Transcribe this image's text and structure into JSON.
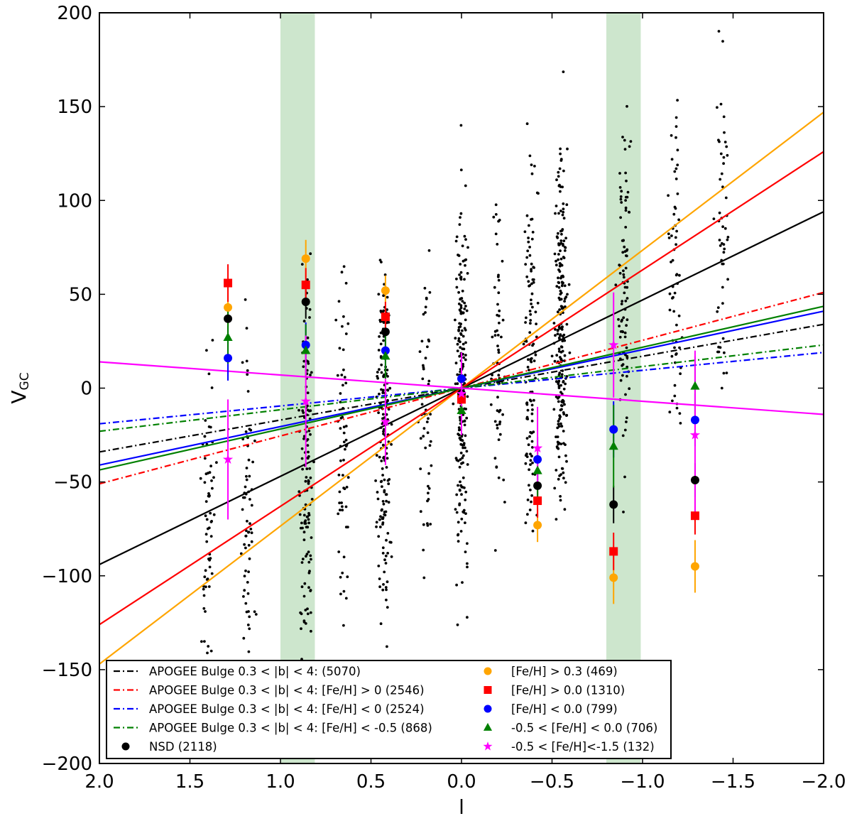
{
  "chart_data": {
    "type": "scatter",
    "title": "",
    "xlabel": "l",
    "ylabel_main": "V",
    "ylabel_sub": "GC",
    "xlim": [
      2.0,
      -2.0
    ],
    "ylim": [
      -200,
      200
    ],
    "xticks": [
      2.0,
      1.5,
      1.0,
      0.5,
      0.0,
      -0.5,
      -1.0,
      -1.5,
      -2.0
    ],
    "xtick_labels": [
      "2.0",
      "1.5",
      "1.0",
      "0.5",
      "0.0",
      "−0.5",
      "−1.0",
      "−1.5",
      "−2.0"
    ],
    "yticks": [
      200,
      150,
      100,
      50,
      0,
      -50,
      -100,
      -150,
      -200
    ],
    "ytick_labels": [
      "200",
      "150",
      "100",
      "50",
      "0",
      "−50",
      "−100",
      "−150",
      "−200"
    ],
    "shaded_bands": [
      {
        "x_range": [
          1.0,
          0.81
        ],
        "color": "#cde6cd"
      },
      {
        "x_range": [
          -0.8,
          -0.99
        ],
        "color": "#cde6cd"
      }
    ],
    "scatter_columns": [
      {
        "l": 1.4,
        "n": 70
      },
      {
        "l": 1.18,
        "n": 70
      },
      {
        "l": 0.86,
        "n": 130
      },
      {
        "l": 0.65,
        "n": 60
      },
      {
        "l": 0.43,
        "n": 170
      },
      {
        "l": 0.2,
        "n": 55
      },
      {
        "l": 0.0,
        "n": 200
      },
      {
        "l": -0.2,
        "n": 60
      },
      {
        "l": -0.38,
        "n": 120
      },
      {
        "l": -0.55,
        "n": 220
      },
      {
        "l": -0.9,
        "n": 90
      },
      {
        "l": -1.18,
        "n": 60
      },
      {
        "l": -1.44,
        "n": 50
      }
    ],
    "fit_lines": [
      {
        "name": "APOGEE Bulge 0.3 < |b| < 4:  (5070)",
        "slope": -17,
        "color": "#000000",
        "style": "dashdot"
      },
      {
        "name": "APOGEE Bulge 0.3 < |b| < 4:  [Fe/H] > 0  (2546)",
        "slope": -25.5,
        "color": "#ff0000",
        "style": "dashdot"
      },
      {
        "name": "APOGEE Bulge 0.3 < |b| < 4: [Fe/H] < 0  (2524)",
        "slope": -9.5,
        "color": "#0000ff",
        "style": "dashdot"
      },
      {
        "name": "APOGEE Bulge 0.3 < |b| < 4: [Fe/H] < -0.5  (868)",
        "slope": -11.5,
        "color": "#008000",
        "style": "dashdot"
      },
      {
        "name": "NSD fit",
        "slope": -47,
        "color": "#000000",
        "style": "solid"
      },
      {
        "name": "[Fe/H] > 0.3 fit",
        "slope": -73.5,
        "color": "#ffa500",
        "style": "solid"
      },
      {
        "name": "[Fe/H] > 0.0 fit",
        "slope": -63,
        "color": "#ff0000",
        "style": "solid"
      },
      {
        "name": "[Fe/H] < 0.0 fit",
        "slope": -20.5,
        "color": "#0000ff",
        "style": "solid"
      },
      {
        "name": "-0.5 < [Fe/H] < 0.0 fit",
        "slope": -21.8,
        "color": "#008000",
        "style": "solid"
      },
      {
        "name": "-0.5 < [Fe/H]<-1.5 fit",
        "slope": 7,
        "color": "#ff00ff",
        "style": "solid"
      }
    ],
    "point_series": [
      {
        "name": "NSD (2118)",
        "marker": "circle",
        "color": "#000000",
        "points": [
          {
            "l": 1.29,
            "v": 37,
            "err": 8
          },
          {
            "l": 0.86,
            "v": 46,
            "err": 9
          },
          {
            "l": 0.42,
            "v": 30,
            "err": 8
          },
          {
            "l": 0.0,
            "v": -3,
            "err": 5
          },
          {
            "l": -0.42,
            "v": -52,
            "err": 8
          },
          {
            "l": -0.84,
            "v": -62,
            "err": 10
          },
          {
            "l": -1.29,
            "v": -49,
            "err": 9
          }
        ]
      },
      {
        "name": "[Fe/H] > 0.3 (469)",
        "marker": "circle",
        "color": "#ffa500",
        "points": [
          {
            "l": 1.29,
            "v": 43,
            "err": 10
          },
          {
            "l": 0.86,
            "v": 69,
            "err": 10
          },
          {
            "l": 0.42,
            "v": 52,
            "err": 8
          },
          {
            "l": 0.0,
            "v": -6,
            "err": 5
          },
          {
            "l": -0.42,
            "v": -73,
            "err": 9
          },
          {
            "l": -0.84,
            "v": -101,
            "err": 14
          },
          {
            "l": -1.29,
            "v": -95,
            "err": 14
          }
        ]
      },
      {
        "name": "[Fe/H] > 0.0 (1310)",
        "marker": "square",
        "color": "#ff0000",
        "points": [
          {
            "l": 1.29,
            "v": 56,
            "err": 10
          },
          {
            "l": 0.86,
            "v": 55,
            "err": 9
          },
          {
            "l": 0.42,
            "v": 38,
            "err": 8
          },
          {
            "l": 0.0,
            "v": -6,
            "err": 5
          },
          {
            "l": -0.42,
            "v": -60,
            "err": 9
          },
          {
            "l": -0.84,
            "v": -87,
            "err": 10
          },
          {
            "l": -1.29,
            "v": -68,
            "err": 10
          }
        ]
      },
      {
        "name": "[Fe/H] < 0.0  (799)",
        "marker": "circle",
        "color": "#0000ff",
        "points": [
          {
            "l": 1.29,
            "v": 16,
            "err": 12
          },
          {
            "l": 0.86,
            "v": 23,
            "err": 12
          },
          {
            "l": 0.42,
            "v": 20,
            "err": 10
          },
          {
            "l": 0.0,
            "v": 5,
            "err": 8
          },
          {
            "l": -0.42,
            "v": -38,
            "err": 12
          },
          {
            "l": -0.84,
            "v": -22,
            "err": 15
          },
          {
            "l": -1.29,
            "v": -17,
            "err": 14
          }
        ]
      },
      {
        "name": "-0.5 < [Fe/H] < 0.0 (706)",
        "marker": "triangle",
        "color": "#008000",
        "points": [
          {
            "l": 1.29,
            "v": 27,
            "err": 14
          },
          {
            "l": 0.86,
            "v": 20,
            "err": 14
          },
          {
            "l": 0.42,
            "v": 17,
            "err": 12
          },
          {
            "l": 0.0,
            "v": -12,
            "err": 10
          },
          {
            "l": -0.42,
            "v": -44,
            "err": 14
          },
          {
            "l": -0.84,
            "v": -31,
            "err": 22
          },
          {
            "l": -1.29,
            "v": 1,
            "err": 16
          }
        ]
      },
      {
        "name": "-0.5 < [Fe/H]<-1.5 (132)",
        "marker": "star",
        "color": "#ff00ff",
        "points": [
          {
            "l": 1.29,
            "v": -38,
            "err": 32
          },
          {
            "l": 0.86,
            "v": -7,
            "err": 35
          },
          {
            "l": 0.42,
            "v": -18,
            "err": 23
          },
          {
            "l": 0.0,
            "v": -3,
            "err": 22
          },
          {
            "l": -0.42,
            "v": -32,
            "err": 22
          },
          {
            "l": -0.84,
            "v": 23,
            "err": 28
          },
          {
            "l": -1.29,
            "v": -25,
            "err": 45
          }
        ]
      }
    ],
    "legend_left": [
      {
        "label": "APOGEE Bulge 0.3 < |b| < 4:  (5070)",
        "type": "line",
        "color": "#000000"
      },
      {
        "label": "APOGEE Bulge 0.3 < |b| < 4:  [Fe/H] > 0  (2546)",
        "type": "line",
        "color": "#ff0000"
      },
      {
        "label": "APOGEE Bulge 0.3 < |b| < 4: [Fe/H] < 0  (2524)",
        "type": "line",
        "color": "#0000ff"
      },
      {
        "label": "APOGEE Bulge 0.3 < |b| < 4: [Fe/H] < -0.5  (868)",
        "type": "line",
        "color": "#008000"
      },
      {
        "label": "NSD (2118)",
        "type": "circle",
        "color": "#000000"
      }
    ],
    "legend_right": [
      {
        "label": "[Fe/H] > 0.3 (469)",
        "type": "circle",
        "color": "#ffa500"
      },
      {
        "label": "[Fe/H] > 0.0 (1310)",
        "type": "square",
        "color": "#ff0000"
      },
      {
        "label": "[Fe/H] < 0.0  (799)",
        "type": "circle",
        "color": "#0000ff"
      },
      {
        "label": "-0.5 < [Fe/H] < 0.0  (706)",
        "type": "triangle",
        "color": "#008000"
      },
      {
        "label": "-0.5 < [Fe/H]<-1.5 (132)",
        "type": "star",
        "color": "#ff00ff"
      }
    ]
  }
}
